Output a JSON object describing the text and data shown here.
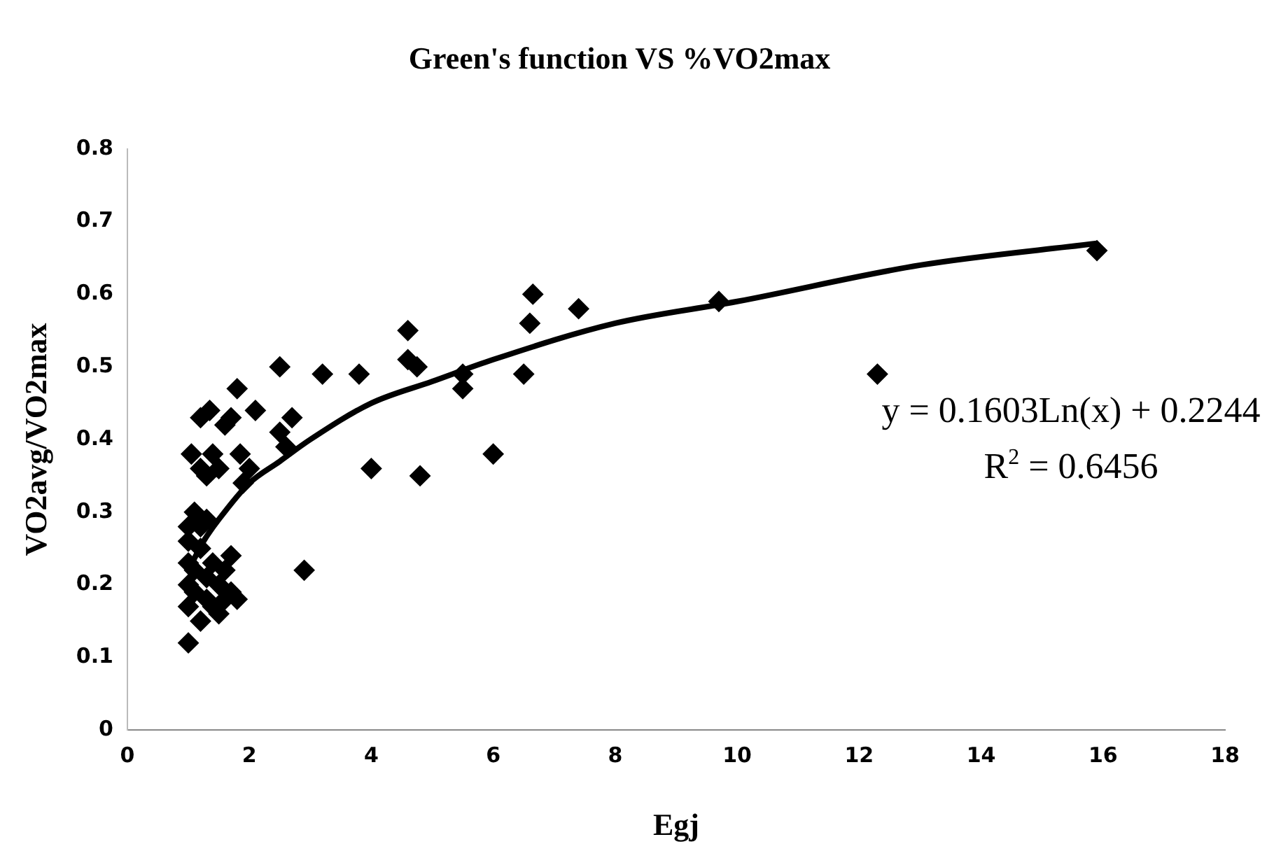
{
  "chart_data": {
    "type": "scatter",
    "title": "Green's function VS %VO2max",
    "xlabel": "Egj",
    "ylabel": "VO2avg/VO2max",
    "xlim": [
      0,
      18
    ],
    "xticks": [
      0,
      2,
      4,
      6,
      8,
      10,
      12,
      14,
      16,
      18
    ],
    "ylim": [
      0,
      0.8
    ],
    "yticks": [
      0,
      0.1,
      0.2,
      0.3,
      0.4,
      0.5,
      0.6,
      0.7,
      0.8
    ],
    "grid": false,
    "legend": false,
    "marker": "diamond",
    "annotations": [
      "y = 0.1603Ln(x) + 0.2244",
      "R$^{2}$ = 0.6456"
    ],
    "series": [
      {
        "type": "scatter",
        "color": "#000000",
        "x": [
          1.0,
          1.0,
          1.0,
          1.0,
          1.0,
          1.0,
          1.1,
          1.1,
          1.2,
          1.2,
          1.2,
          1.3,
          1.3,
          1.4,
          1.4,
          1.5,
          1.5,
          1.6,
          1.6,
          1.7,
          1.7,
          1.8,
          1.3,
          1.1,
          1.05,
          1.2,
          1.3,
          1.35,
          1.4,
          1.5,
          1.6,
          1.7,
          1.8,
          1.85,
          1.9,
          2.0,
          2.1,
          1.2,
          2.5,
          2.5,
          2.6,
          2.7,
          2.9,
          3.2,
          3.8,
          4.0,
          4.6,
          4.6,
          4.75,
          4.8,
          5.5,
          5.5,
          6.0,
          6.5,
          6.6,
          6.65,
          7.4,
          9.7,
          12.3,
          15.9
        ],
        "values": [
          0.12,
          0.17,
          0.2,
          0.23,
          0.26,
          0.28,
          0.19,
          0.22,
          0.15,
          0.25,
          0.28,
          0.18,
          0.21,
          0.17,
          0.23,
          0.2,
          0.16,
          0.22,
          0.18,
          0.24,
          0.19,
          0.18,
          0.29,
          0.3,
          0.38,
          0.43,
          0.35,
          0.44,
          0.38,
          0.36,
          0.42,
          0.43,
          0.47,
          0.38,
          0.34,
          0.36,
          0.44,
          0.36,
          0.5,
          0.41,
          0.39,
          0.43,
          0.22,
          0.49,
          0.49,
          0.36,
          0.55,
          0.51,
          0.5,
          0.35,
          0.49,
          0.47,
          0.38,
          0.49,
          0.56,
          0.6,
          0.58,
          0.59,
          0.49,
          0.66
        ]
      },
      {
        "type": "line",
        "color": "#000000",
        "marker": "none",
        "x": [
          1,
          1.25,
          1.5,
          2,
          2.5,
          3,
          4,
          5,
          6,
          8,
          10,
          13,
          15.9
        ],
        "values": [
          0.22,
          0.26,
          0.29,
          0.34,
          0.37,
          0.4,
          0.45,
          0.48,
          0.51,
          0.56,
          0.59,
          0.64,
          0.67
        ]
      }
    ]
  }
}
